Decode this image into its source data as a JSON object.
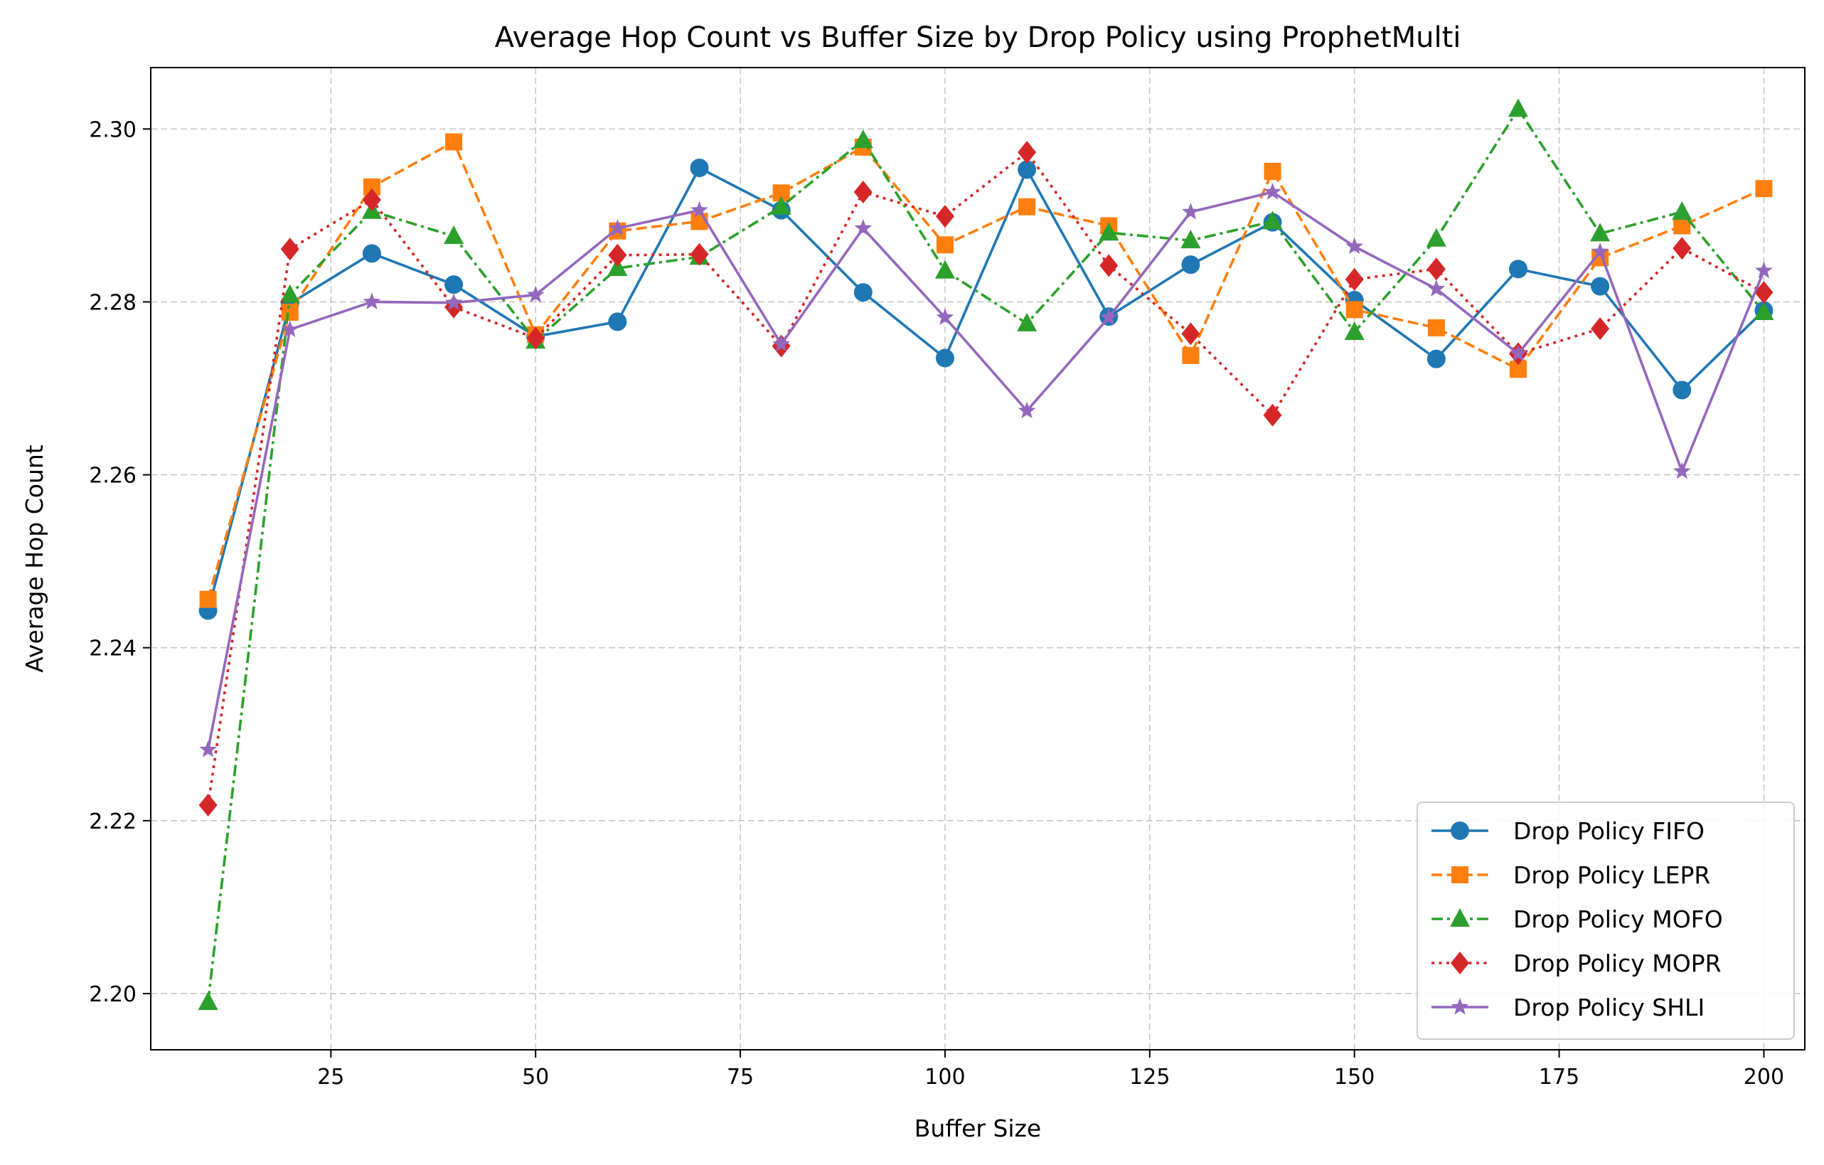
{
  "chart_data": {
    "type": "line",
    "title": "Average Hop Count vs Buffer Size by Drop Policy using ProphetMulti",
    "xlabel": "Buffer Size",
    "ylabel": "Average Hop Count",
    "xlim": [
      3,
      205
    ],
    "ylim": [
      2.1935,
      2.3071
    ],
    "xticks": [
      25,
      50,
      75,
      100,
      125,
      150,
      175,
      200
    ],
    "yticks": [
      2.2,
      2.22,
      2.24,
      2.26,
      2.28,
      2.3
    ],
    "ytick_labels": [
      "2.20",
      "2.22",
      "2.24",
      "2.26",
      "2.28",
      "2.30"
    ],
    "grid": true,
    "legend_position": "lower right",
    "x": [
      10,
      20,
      30,
      40,
      50,
      60,
      70,
      80,
      90,
      100,
      110,
      120,
      130,
      140,
      150,
      160,
      170,
      180,
      190,
      200
    ],
    "series": [
      {
        "name": "Drop Policy FIFO",
        "color": "#1f77b4",
        "marker": "circle",
        "linestyle": "solid",
        "values": [
          2.2443,
          2.2798,
          2.2856,
          2.282,
          2.276,
          2.2777,
          2.2955,
          2.2906,
          2.2811,
          2.2735,
          2.2953,
          2.2783,
          2.2843,
          2.2892,
          2.2802,
          2.2734,
          2.2838,
          2.2818,
          2.2698,
          2.279
        ]
      },
      {
        "name": "Drop Policy LEPR",
        "color": "#ff7f0e",
        "marker": "square",
        "linestyle": "dashed",
        "values": [
          2.2456,
          2.2788,
          2.2933,
          2.2985,
          2.2762,
          2.2882,
          2.2893,
          2.2926,
          2.2979,
          2.2866,
          2.291,
          2.2888,
          2.2738,
          2.2951,
          2.2791,
          2.277,
          2.2722,
          2.2851,
          2.2888,
          2.2931
        ]
      },
      {
        "name": "Drop Policy MOFO",
        "color": "#2ca02c",
        "marker": "triangle",
        "linestyle": "dashdot",
        "values": [
          2.199,
          2.2808,
          2.2905,
          2.2876,
          2.2755,
          2.2839,
          2.2852,
          2.291,
          2.2987,
          2.2836,
          2.2775,
          2.288,
          2.2871,
          2.2893,
          2.2765,
          2.2873,
          2.3023,
          2.2879,
          2.2904,
          2.2788
        ]
      },
      {
        "name": "Drop Policy MOPR",
        "color": "#d62728",
        "marker": "diamond",
        "linestyle": "dotted",
        "values": [
          2.2218,
          2.2861,
          2.2918,
          2.2794,
          2.2758,
          2.2854,
          2.2855,
          2.2749,
          2.2927,
          2.2899,
          2.2973,
          2.2842,
          2.2763,
          2.2669,
          2.2826,
          2.2838,
          2.274,
          2.2769,
          2.2862,
          2.2811
        ]
      },
      {
        "name": "Drop Policy SHLI",
        "color": "#9467bd",
        "marker": "star",
        "linestyle": "solid",
        "values": [
          2.2282,
          2.2768,
          2.28,
          2.2799,
          2.2808,
          2.2885,
          2.2906,
          2.2751,
          2.2885,
          2.2782,
          2.2674,
          2.2782,
          2.2904,
          2.2927,
          2.2864,
          2.2815,
          2.274,
          2.2858,
          2.2604,
          2.2836
        ]
      }
    ]
  }
}
